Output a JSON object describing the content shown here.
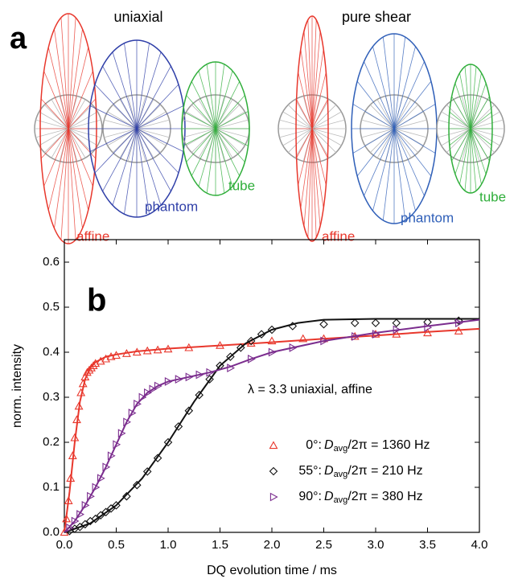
{
  "panel_a": {
    "label": "a",
    "groups": [
      {
        "title": "uniaxial",
        "models": [
          {
            "label": "affine",
            "color": "#e8372c"
          },
          {
            "label": "phantom",
            "color": "#2f3fa8"
          },
          {
            "label": "tube",
            "color": "#2fae3a"
          }
        ]
      },
      {
        "title": "pure shear",
        "models": [
          {
            "label": "affine",
            "color": "#e8372c"
          },
          {
            "label": "phantom",
            "color": "#2f5fb8"
          },
          {
            "label": "tube",
            "color": "#2fae3a"
          }
        ]
      }
    ]
  },
  "chart_data": {
    "type": "scatter",
    "panel_label": "b",
    "xlabel": "DQ evolution time  /  ms",
    "ylabel": "norm. intensity",
    "annotation": "λ = 3.3 uniaxial, affine",
    "xlim": [
      0,
      4
    ],
    "ylim": [
      0,
      0.65
    ],
    "xticks": [
      {
        "value": 0,
        "label": "0.0"
      },
      0.5,
      {
        "value": 1,
        "label": "1.0"
      },
      1.5,
      {
        "value": 2,
        "label": "2.0"
      },
      2.5,
      {
        "value": 3,
        "label": "3.0"
      },
      3.5,
      {
        "value": 4,
        "label": "4.0"
      }
    ],
    "yticks": [
      {
        "value": 0,
        "label": "0.0"
      },
      0.1,
      0.2,
      0.3,
      0.4,
      0.5,
      0.6
    ],
    "series": [
      {
        "name": [
          "0°: ",
          "D",
          "avg",
          "/2π = 1360 Hz"
        ],
        "color": "#e8372c",
        "marker": "triangle-up",
        "x": [
          0,
          0.02,
          0.04,
          0.06,
          0.08,
          0.1,
          0.12,
          0.14,
          0.16,
          0.18,
          0.2,
          0.22,
          0.24,
          0.26,
          0.28,
          0.3,
          0.35,
          0.4,
          0.45,
          0.5,
          0.6,
          0.7,
          0.8,
          0.9,
          1.0,
          1.2,
          1.5,
          1.8,
          2.0,
          2.3,
          2.5,
          2.8,
          3.0,
          3.2,
          3.5,
          3.8
        ],
        "values": [
          0,
          0.03,
          0.07,
          0.12,
          0.17,
          0.21,
          0.25,
          0.28,
          0.31,
          0.33,
          0.345,
          0.355,
          0.36,
          0.365,
          0.37,
          0.375,
          0.38,
          0.385,
          0.39,
          0.393,
          0.397,
          0.4,
          0.403,
          0.405,
          0.407,
          0.41,
          0.415,
          0.42,
          0.425,
          0.43,
          0.43,
          0.435,
          0.44,
          0.44,
          0.443,
          0.447
        ],
        "fit_x": [
          0,
          0.05,
          0.1,
          0.15,
          0.2,
          0.25,
          0.3,
          0.4,
          0.5,
          0.7,
          1.0,
          1.5,
          2.0,
          2.5,
          3.0,
          3.5,
          4.0
        ],
        "fit_values": [
          0,
          0.09,
          0.2,
          0.29,
          0.34,
          0.365,
          0.378,
          0.39,
          0.395,
          0.402,
          0.408,
          0.415,
          0.422,
          0.43,
          0.437,
          0.445,
          0.452
        ]
      },
      {
        "name": [
          "55°: ",
          "D",
          "avg",
          "/2π = 210 Hz"
        ],
        "color": "#111111",
        "marker": "diamond",
        "x": [
          0.05,
          0.1,
          0.15,
          0.2,
          0.25,
          0.3,
          0.35,
          0.4,
          0.45,
          0.5,
          0.6,
          0.7,
          0.8,
          0.9,
          1.0,
          1.1,
          1.2,
          1.3,
          1.4,
          1.5,
          1.6,
          1.7,
          1.8,
          1.9,
          2.0,
          2.2,
          2.5,
          2.8,
          3.0,
          3.2,
          3.5,
          3.8
        ],
        "values": [
          0.003,
          0.008,
          0.012,
          0.018,
          0.025,
          0.03,
          0.038,
          0.045,
          0.053,
          0.06,
          0.08,
          0.105,
          0.135,
          0.165,
          0.2,
          0.235,
          0.27,
          0.305,
          0.34,
          0.37,
          0.39,
          0.41,
          0.425,
          0.44,
          0.45,
          0.458,
          0.462,
          0.465,
          0.465,
          0.465,
          0.467,
          0.47
        ],
        "fit_x": [
          0,
          0.25,
          0.5,
          0.75,
          1.0,
          1.25,
          1.5,
          1.75,
          2.0,
          2.25,
          2.5,
          3.0,
          3.5,
          4.0
        ],
        "fit_values": [
          0,
          0.02,
          0.06,
          0.12,
          0.2,
          0.29,
          0.37,
          0.42,
          0.45,
          0.465,
          0.472,
          0.474,
          0.474,
          0.474
        ]
      },
      {
        "name": [
          "90°: ",
          "D",
          "avg",
          "/2π = 380 Hz"
        ],
        "color": "#7b2d8e",
        "marker": "triangle-right",
        "x": [
          0.05,
          0.1,
          0.15,
          0.2,
          0.25,
          0.3,
          0.35,
          0.4,
          0.45,
          0.5,
          0.55,
          0.6,
          0.65,
          0.7,
          0.75,
          0.8,
          0.85,
          0.9,
          1.0,
          1.1,
          1.2,
          1.3,
          1.4,
          1.6,
          1.8,
          2.0,
          2.2,
          2.5,
          2.8,
          3.0,
          3.2,
          3.5,
          3.8
        ],
        "values": [
          0.01,
          0.025,
          0.04,
          0.06,
          0.08,
          0.1,
          0.12,
          0.145,
          0.17,
          0.195,
          0.22,
          0.245,
          0.265,
          0.285,
          0.3,
          0.31,
          0.318,
          0.325,
          0.335,
          0.34,
          0.345,
          0.35,
          0.355,
          0.365,
          0.385,
          0.4,
          0.41,
          0.425,
          0.435,
          0.44,
          0.45,
          0.455,
          0.465
        ],
        "fit_x": [
          0,
          0.1,
          0.2,
          0.3,
          0.4,
          0.5,
          0.6,
          0.7,
          0.8,
          0.9,
          1.0,
          1.2,
          1.4,
          1.6,
          1.8,
          2.0,
          2.5,
          3.0,
          3.5,
          4.0
        ],
        "fit_values": [
          0,
          0.025,
          0.06,
          0.1,
          0.145,
          0.195,
          0.245,
          0.285,
          0.31,
          0.325,
          0.335,
          0.345,
          0.355,
          0.368,
          0.385,
          0.4,
          0.425,
          0.443,
          0.458,
          0.472
        ]
      }
    ]
  }
}
